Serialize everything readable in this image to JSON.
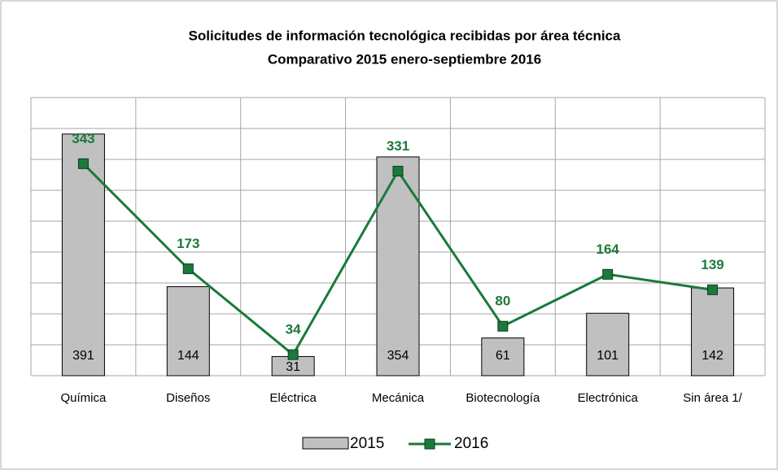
{
  "chart_data": {
    "type": "bar_line",
    "title": "Solicitudes de información tecnológica recibidas por área técnica",
    "subtitle": "Comparativo 2015 enero-septiembre 2016",
    "categories": [
      "Química",
      "Diseños",
      "Eléctrica",
      "Mecánica",
      "Biotecnología",
      "Electrónica",
      "Sin área 1/"
    ],
    "series": [
      {
        "name": "2015",
        "type": "bar",
        "color": "#c0c0c0",
        "values": [
          391,
          144,
          31,
          354,
          61,
          101,
          142
        ]
      },
      {
        "name": "2016",
        "type": "line",
        "color": "#1a7a3a",
        "values": [
          343,
          173,
          34,
          331,
          80,
          164,
          139
        ]
      }
    ],
    "ylim": [
      0,
      450
    ],
    "yticks": [
      0,
      50,
      100,
      150,
      200,
      250,
      300,
      350,
      400,
      450
    ],
    "grid": true
  }
}
